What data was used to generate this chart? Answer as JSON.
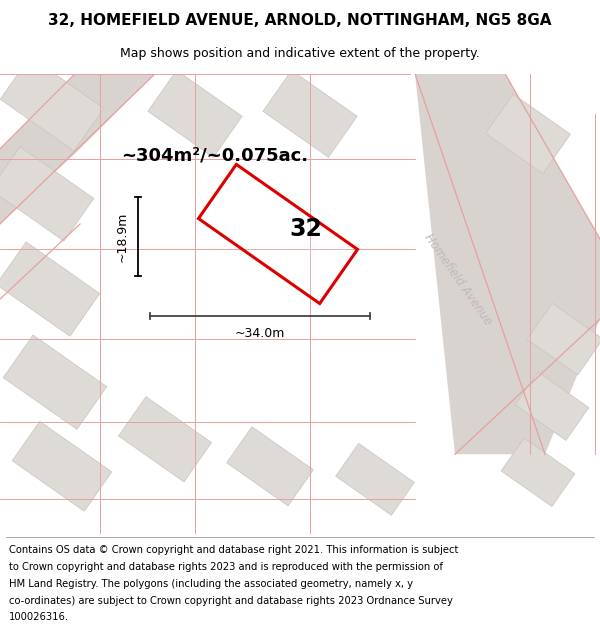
{
  "title": "32, HOMEFIELD AVENUE, ARNOLD, NOTTINGHAM, NG5 8GA",
  "subtitle": "Map shows position and indicative extent of the property.",
  "footer_lines": [
    "Contains OS data © Crown copyright and database right 2021. This information is subject",
    "to Crown copyright and database rights 2023 and is reproduced with the permission of",
    "HM Land Registry. The polygons (including the associated geometry, namely x, y",
    "co-ordinates) are subject to Crown copyright and database rights 2023 Ordnance Survey",
    "100026316."
  ],
  "area_label": "~304m²/~0.075ac.",
  "house_number": "32",
  "dim_width": "~34.0m",
  "dim_height": "~18.9m",
  "street_name": "Homefield Avenue",
  "map_bg": "#eeebe6",
  "road_fill": "#d8d3ce",
  "building_color": "#dedad5",
  "building_edge": "#c8c4bf",
  "red_property_color": "#dd0000",
  "pink_line": "#e8a0a0",
  "gray_line": "#b8b4b0",
  "title_fontsize": 11,
  "subtitle_fontsize": 9,
  "footer_fontsize": 7.2
}
